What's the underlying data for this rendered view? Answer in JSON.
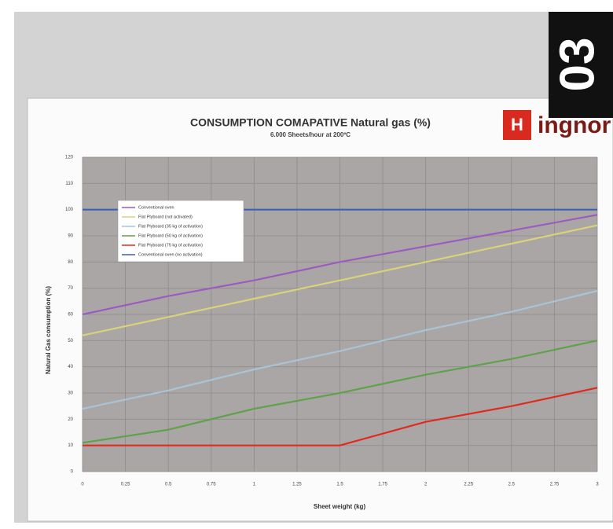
{
  "badge": "03",
  "logo": "ingnor",
  "chart_data": {
    "type": "line",
    "title": "CONSUMPTION COMAPATIVE Natural gas (%)",
    "subtitle": "6.000 Sheets/hour at 200ºC",
    "x_label": "Sheet weight (kg)",
    "y_label": "Natural Gas consumption (%)",
    "x": [
      0,
      0.5,
      1,
      1.5,
      2,
      2.5,
      3
    ],
    "series": [
      {
        "name": "Conventional oven",
        "color": "#9a5cc0",
        "values": [
          60,
          67,
          73,
          80,
          86,
          92,
          98
        ]
      },
      {
        "name": "Flat Plyboard (not activated)",
        "color": "#d8d27a",
        "values": [
          52,
          59,
          66,
          73,
          80,
          87,
          94
        ]
      },
      {
        "name": "Flat Plyboard (35 kg of activation)",
        "color": "#a9c3d6",
        "values": [
          24,
          31,
          39,
          46,
          54,
          61,
          69
        ]
      },
      {
        "name": "Flat Plyboard (50 kg of activation)",
        "color": "#5fa24a",
        "values": [
          11,
          16,
          24,
          30,
          37,
          43,
          50
        ]
      },
      {
        "name": "Flat Plyboard (75 kg of activation)",
        "color": "#e02a1e",
        "values": [
          10,
          10,
          10,
          10,
          19,
          25,
          32
        ]
      },
      {
        "name": "Conventional oven (no activation)",
        "color": "#3f5fb5",
        "values": [
          100,
          100,
          100,
          100,
          100,
          100,
          100
        ]
      }
    ],
    "xlim": [
      0,
      3
    ],
    "xticks": [
      0,
      0.25,
      0.5,
      0.75,
      1,
      1.25,
      1.5,
      1.75,
      2,
      2.25,
      2.5,
      2.75,
      3
    ],
    "ylim": [
      0,
      120
    ],
    "yticks": [
      0,
      10,
      20,
      30,
      40,
      50,
      60,
      70,
      80,
      90,
      100,
      110,
      120
    ],
    "grid": true,
    "legend": "upper left"
  }
}
